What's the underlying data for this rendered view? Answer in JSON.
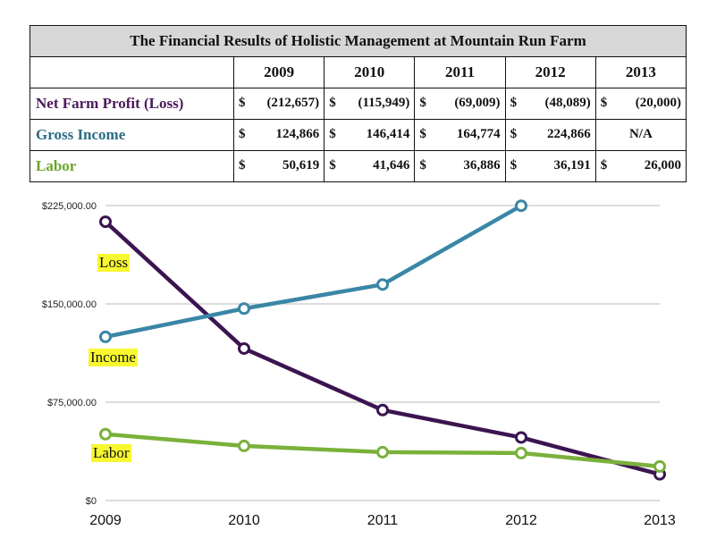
{
  "table": {
    "title": "The Financial Results of Holistic Management at Mountain Run Farm",
    "years": [
      "2009",
      "2010",
      "2011",
      "2012",
      "2013"
    ],
    "rows": [
      {
        "label": "Net Farm Profit (Loss)",
        "color": "#4b1a5a",
        "cells": [
          {
            "dollar": "$",
            "value": "(212,657)"
          },
          {
            "dollar": "$",
            "value": "(115,949)"
          },
          {
            "dollar": "$",
            "value": "(69,009)"
          },
          {
            "dollar": "$",
            "value": "(48,089)"
          },
          {
            "dollar": "$",
            "value": "(20,000)"
          }
        ]
      },
      {
        "label": "Gross Income",
        "color": "#2c6c86",
        "cells": [
          {
            "dollar": "$",
            "value": "124,866"
          },
          {
            "dollar": "$",
            "value": "146,414"
          },
          {
            "dollar": "$",
            "value": "164,774"
          },
          {
            "dollar": "$",
            "value": "224,866"
          },
          {
            "dollar": "",
            "value": "N/A"
          }
        ]
      },
      {
        "label": "Labor",
        "color": "#6aa62c",
        "cells": [
          {
            "dollar": "$",
            "value": "50,619"
          },
          {
            "dollar": "$",
            "value": "41,646"
          },
          {
            "dollar": "$",
            "value": "36,886"
          },
          {
            "dollar": "$",
            "value": "36,191"
          },
          {
            "dollar": "$",
            "value": "26,000"
          }
        ]
      }
    ]
  },
  "chart_data": {
    "type": "line",
    "x": [
      "2009",
      "2010",
      "2011",
      "2012",
      "2013"
    ],
    "yticks": [
      "$0",
      "$75,000.00",
      "$150,000.00",
      "$225,000.00"
    ],
    "ylim": [
      0,
      225000
    ],
    "grid": true,
    "series": [
      {
        "name": "Loss",
        "color": "#3b1450",
        "values": [
          212657,
          115949,
          69009,
          48089,
          20000
        ]
      },
      {
        "name": "Income",
        "color": "#3a86a6",
        "values": [
          124866,
          146414,
          164774,
          224866,
          null
        ]
      },
      {
        "name": "Labor",
        "color": "#79b13a",
        "values": [
          50619,
          41646,
          36886,
          36191,
          26000
        ]
      }
    ],
    "highlight_color": "#f8f830"
  }
}
